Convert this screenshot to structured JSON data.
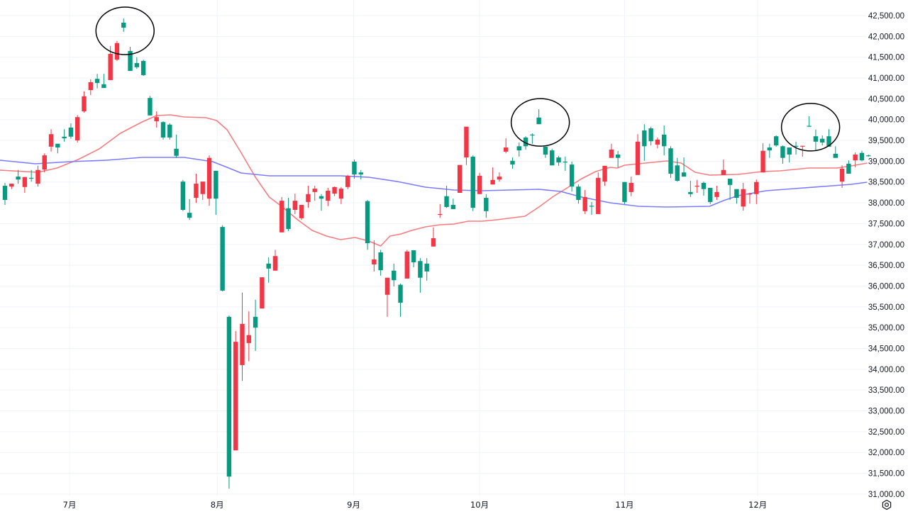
{
  "chart_data": {
    "type": "candlestick",
    "title": "",
    "xlabel": "",
    "ylabel": "",
    "ylim": [
      31000,
      42500
    ],
    "grid": true,
    "colors": {
      "up": "#f23645",
      "down": "#089981",
      "ma_short": "#f77c80",
      "ma_long": "#7b7bff",
      "annotation": "#000000"
    },
    "y_ticks": [
      "42,500.00",
      "42,000.00",
      "41,500.00",
      "41,000.00",
      "40,500.00",
      "40,000.00",
      "39,500.00",
      "39,000.00",
      "38,500.00",
      "38,000.00",
      "37,500.00",
      "37,000.00",
      "36,500.00",
      "36,000.00",
      "35,500.00",
      "35,000.00",
      "34,500.00",
      "34,000.00",
      "33,500.00",
      "33,000.00",
      "32,500.00",
      "32,000.00",
      "31,500.00",
      "31,000.00"
    ],
    "y_tick_values": [
      42500,
      42000,
      41500,
      41000,
      40500,
      40000,
      39500,
      39000,
      38500,
      38000,
      37500,
      37000,
      36500,
      36000,
      35500,
      35000,
      34500,
      34000,
      33500,
      33000,
      32500,
      32000,
      31500,
      31000
    ],
    "x_ticks": [
      {
        "label": "7月",
        "index": 9.8
      },
      {
        "label": "8月",
        "index": 32.2
      },
      {
        "label": "9月",
        "index": 52.9
      },
      {
        "label": "10月",
        "index": 72.0
      },
      {
        "label": "11月",
        "index": 94.0
      },
      {
        "label": "12月",
        "index": 114.2
      }
    ],
    "candles_ohlc": [
      [
        38410,
        38480,
        37950,
        38070
      ],
      [
        38390,
        38460,
        38330,
        38460
      ],
      [
        38630,
        38790,
        38460,
        38560
      ],
      [
        38380,
        38620,
        38240,
        38620
      ],
      [
        38600,
        38790,
        38510,
        38590
      ],
      [
        38460,
        38890,
        38390,
        38790
      ],
      [
        38800,
        39190,
        38730,
        39140
      ],
      [
        39350,
        39770,
        39230,
        39650
      ],
      [
        39420,
        39420,
        39190,
        39330
      ],
      [
        39590,
        39770,
        39470,
        39550
      ],
      [
        39810,
        39910,
        39540,
        39590
      ],
      [
        39500,
        40110,
        39450,
        40060
      ],
      [
        40200,
        40680,
        40170,
        40560
      ],
      [
        40710,
        40970,
        40590,
        40900
      ],
      [
        40980,
        41100,
        40750,
        40880
      ],
      [
        40850,
        41100,
        40760,
        40760
      ],
      [
        40950,
        41770,
        40950,
        41580
      ],
      [
        41440,
        41890,
        41410,
        41840
      ],
      [
        42330,
        42430,
        42110,
        42210
      ],
      [
        41650,
        41750,
        41170,
        41170
      ],
      [
        41360,
        41500,
        41220,
        41260
      ],
      [
        41410,
        41440,
        41050,
        41070
      ],
      [
        40520,
        40570,
        40100,
        40100
      ],
      [
        39960,
        40200,
        39810,
        40060
      ],
      [
        39940,
        39960,
        39520,
        39570
      ],
      [
        39880,
        39910,
        39520,
        39570
      ],
      [
        39300,
        39640,
        39080,
        39130
      ],
      [
        38510,
        38550,
        37800,
        37830
      ],
      [
        37760,
        38090,
        37590,
        37640
      ],
      [
        38120,
        38700,
        38000,
        38460
      ],
      [
        38210,
        38510,
        38070,
        38510
      ],
      [
        38100,
        39140,
        37930,
        39080
      ],
      [
        38770,
        38770,
        37710,
        38100
      ],
      [
        37420,
        37460,
        35870,
        35890
      ],
      [
        35260,
        35290,
        31130,
        31420
      ],
      [
        32050,
        34920,
        32050,
        34660
      ],
      [
        34100,
        35840,
        33720,
        35090
      ],
      [
        34630,
        35390,
        34190,
        34820
      ],
      [
        35260,
        35670,
        34440,
        35000
      ],
      [
        35460,
        36210,
        35460,
        36210
      ],
      [
        36540,
        36690,
        36080,
        36420
      ],
      [
        36370,
        36870,
        36370,
        36720
      ],
      [
        37290,
        38140,
        37290,
        38050
      ],
      [
        37870,
        38120,
        37320,
        37370
      ],
      [
        37830,
        38220,
        37730,
        38050
      ],
      [
        37630,
        37950,
        37590,
        37950
      ],
      [
        38020,
        38410,
        37880,
        38210
      ],
      [
        38260,
        38410,
        38050,
        38340
      ],
      [
        38160,
        38210,
        37810,
        38100
      ],
      [
        38050,
        38360,
        37920,
        38290
      ],
      [
        38220,
        38390,
        38160,
        38380
      ],
      [
        38100,
        38380,
        37970,
        38340
      ],
      [
        38380,
        38670,
        38330,
        38650
      ],
      [
        38990,
        39040,
        38580,
        38680
      ],
      [
        38730,
        38790,
        38560,
        38680
      ],
      [
        38040,
        38070,
        36870,
        37030
      ],
      [
        36520,
        37100,
        36350,
        36640
      ],
      [
        36810,
        36870,
        36250,
        36380
      ],
      [
        35790,
        36200,
        35260,
        36200
      ],
      [
        36370,
        36540,
        35990,
        36140
      ],
      [
        36030,
        36060,
        35260,
        35600
      ],
      [
        36180,
        36870,
        36180,
        36830
      ],
      [
        36860,
        36860,
        36450,
        36570
      ],
      [
        36600,
        36670,
        35840,
        36200
      ],
      [
        36540,
        36670,
        36130,
        36350
      ],
      [
        36950,
        37410,
        36950,
        37150
      ],
      [
        37710,
        37970,
        37640,
        37730
      ],
      [
        38160,
        38410,
        37880,
        37900
      ],
      [
        37950,
        38100,
        37850,
        37850
      ],
      [
        38240,
        38910,
        38240,
        38910
      ],
      [
        39090,
        39830,
        38910,
        39830
      ],
      [
        39110,
        39140,
        37800,
        37880
      ],
      [
        38210,
        38720,
        38210,
        38650
      ],
      [
        38120,
        38210,
        37640,
        37800
      ],
      [
        38440,
        38850,
        38440,
        38550
      ],
      [
        38560,
        38730,
        38510,
        38630
      ],
      [
        39230,
        39550,
        39190,
        39330
      ],
      [
        39010,
        39090,
        38820,
        38920
      ],
      [
        39360,
        39450,
        39110,
        39260
      ],
      [
        39570,
        39600,
        39280,
        39360
      ],
      [
        39640,
        39670,
        39420,
        39620
      ],
      [
        40050,
        40250,
        39890,
        39890
      ],
      [
        39350,
        39350,
        39080,
        39160
      ],
      [
        39260,
        39300,
        38900,
        38900
      ],
      [
        39090,
        39130,
        38890,
        38970
      ],
      [
        38990,
        39110,
        38770,
        38970
      ],
      [
        38920,
        38990,
        38270,
        38390
      ],
      [
        38390,
        38440,
        37980,
        38070
      ],
      [
        37800,
        38310,
        37730,
        38140
      ],
      [
        37930,
        38020,
        37710,
        37910
      ],
      [
        37730,
        38730,
        37730,
        38600
      ],
      [
        38510,
        38890,
        38410,
        38890
      ],
      [
        39080,
        39420,
        39080,
        39280
      ],
      [
        39160,
        39250,
        38850,
        39080
      ],
      [
        38500,
        38500,
        37970,
        38020
      ],
      [
        38260,
        38630,
        38160,
        38480
      ],
      [
        38670,
        39650,
        38670,
        39470
      ],
      [
        39740,
        39890,
        39010,
        39360
      ],
      [
        39790,
        39830,
        39380,
        39480
      ],
      [
        39400,
        39570,
        39310,
        39520
      ],
      [
        39640,
        39860,
        39140,
        39360
      ],
      [
        39310,
        39360,
        38600,
        38700
      ],
      [
        38900,
        39080,
        38510,
        38530
      ],
      [
        38730,
        39090,
        38630,
        38630
      ],
      [
        38260,
        38530,
        38140,
        38210
      ],
      [
        38390,
        38550,
        38240,
        38410
      ],
      [
        38480,
        38510,
        38170,
        38330
      ],
      [
        38360,
        38360,
        37970,
        38020
      ],
      [
        38140,
        38410,
        38070,
        38260
      ],
      [
        38670,
        39040,
        38670,
        38790
      ],
      [
        38580,
        38580,
        38070,
        38430
      ],
      [
        38330,
        38330,
        37980,
        38120
      ],
      [
        37910,
        38480,
        37810,
        38330
      ],
      [
        38210,
        38240,
        37980,
        38220
      ],
      [
        38210,
        38560,
        37970,
        38500
      ],
      [
        38730,
        39430,
        38730,
        39250
      ],
      [
        39330,
        39420,
        39080,
        39260
      ],
      [
        39600,
        39620,
        39350,
        39380
      ],
      [
        39360,
        39380,
        38940,
        39080
      ],
      [
        39330,
        39330,
        38970,
        39160
      ],
      [
        39370,
        39470,
        39160,
        39350
      ],
      [
        39350,
        39370,
        39110,
        39370
      ],
      [
        39850,
        40080,
        39830,
        39830
      ],
      [
        39600,
        39760,
        39250,
        39470
      ],
      [
        39540,
        39620,
        39380,
        39450
      ],
      [
        39600,
        39770,
        39350,
        39350
      ],
      [
        39180,
        39360,
        39080,
        39080
      ],
      [
        38510,
        38900,
        38360,
        38820
      ],
      [
        38940,
        39020,
        38700,
        38700
      ],
      [
        39020,
        39210,
        38850,
        39160
      ],
      [
        39200,
        39250,
        39000,
        39020
      ],
      [
        39140,
        39160,
        39110,
        39130
      ]
    ],
    "series": [
      {
        "name": "MA short",
        "points": [
          [
            -0.75,
            38785
          ],
          [
            5,
            38734
          ],
          [
            7.9,
            38836
          ],
          [
            11.1,
            39041
          ],
          [
            14.3,
            39297
          ],
          [
            17.5,
            39671
          ],
          [
            20.8,
            39944
          ],
          [
            23,
            40098
          ],
          [
            25.1,
            40115
          ],
          [
            27.2,
            40063
          ],
          [
            30.5,
            40046
          ],
          [
            32.1,
            39978
          ],
          [
            33.7,
            39757
          ],
          [
            35.8,
            39211
          ],
          [
            38,
            38615
          ],
          [
            40.1,
            38138
          ],
          [
            42.1,
            37899
          ],
          [
            44.4,
            37593
          ],
          [
            46.6,
            37337
          ],
          [
            48.8,
            37201
          ],
          [
            50.9,
            37115
          ],
          [
            53.1,
            37167
          ],
          [
            55.2,
            37081
          ],
          [
            57,
            36962
          ],
          [
            58.4,
            37201
          ],
          [
            60.1,
            37252
          ],
          [
            61.7,
            37337
          ],
          [
            63.8,
            37422
          ],
          [
            66,
            37473
          ],
          [
            68.1,
            37490
          ],
          [
            70.3,
            37559
          ],
          [
            72.4,
            37559
          ],
          [
            74.6,
            37593
          ],
          [
            78.9,
            37678
          ],
          [
            81,
            37899
          ],
          [
            83.2,
            38155
          ],
          [
            85.3,
            38359
          ],
          [
            87.5,
            38581
          ],
          [
            89.6,
            38751
          ],
          [
            91.8,
            38853
          ],
          [
            92.9,
            38836
          ],
          [
            94,
            38905
          ],
          [
            96.1,
            38939
          ],
          [
            100.4,
            39007
          ],
          [
            102.6,
            38956
          ],
          [
            104.7,
            38734
          ],
          [
            106.9,
            38666
          ],
          [
            111.2,
            38683
          ],
          [
            114.9,
            38751
          ],
          [
            117.6,
            38768
          ],
          [
            121.9,
            38836
          ],
          [
            126.2,
            38836
          ],
          [
            128.4,
            38888
          ],
          [
            130.8,
            38956
          ]
        ]
      },
      {
        "name": "MA long",
        "points": [
          [
            -0.75,
            39024
          ],
          [
            4.6,
            38939
          ],
          [
            10,
            38990
          ],
          [
            15.4,
            39024
          ],
          [
            20.8,
            39092
          ],
          [
            27.2,
            39092
          ],
          [
            31.5,
            38990
          ],
          [
            33.7,
            38853
          ],
          [
            35.8,
            38717
          ],
          [
            40.1,
            38649
          ],
          [
            50.9,
            38649
          ],
          [
            55.2,
            38615
          ],
          [
            59.5,
            38513
          ],
          [
            63.8,
            38376
          ],
          [
            68.1,
            38308
          ],
          [
            72.4,
            38291
          ],
          [
            81,
            38325
          ],
          [
            84.3,
            38274
          ],
          [
            87.5,
            38138
          ],
          [
            91.8,
            38002
          ],
          [
            96.1,
            37916
          ],
          [
            100.4,
            37899
          ],
          [
            106.9,
            37916
          ],
          [
            109,
            38053
          ],
          [
            111.2,
            38172
          ],
          [
            115.5,
            38291
          ],
          [
            119.8,
            38342
          ],
          [
            124.1,
            38393
          ],
          [
            128.4,
            38445
          ],
          [
            130.8,
            38496
          ]
        ]
      }
    ],
    "annotations": [
      {
        "type": "ellipse",
        "candle_index": 18
      },
      {
        "type": "ellipse",
        "candle_index": 81
      },
      {
        "type": "ellipse",
        "candle_index": 122
      }
    ]
  },
  "controls": {
    "settings_icon": "hexagon-settings-icon"
  }
}
